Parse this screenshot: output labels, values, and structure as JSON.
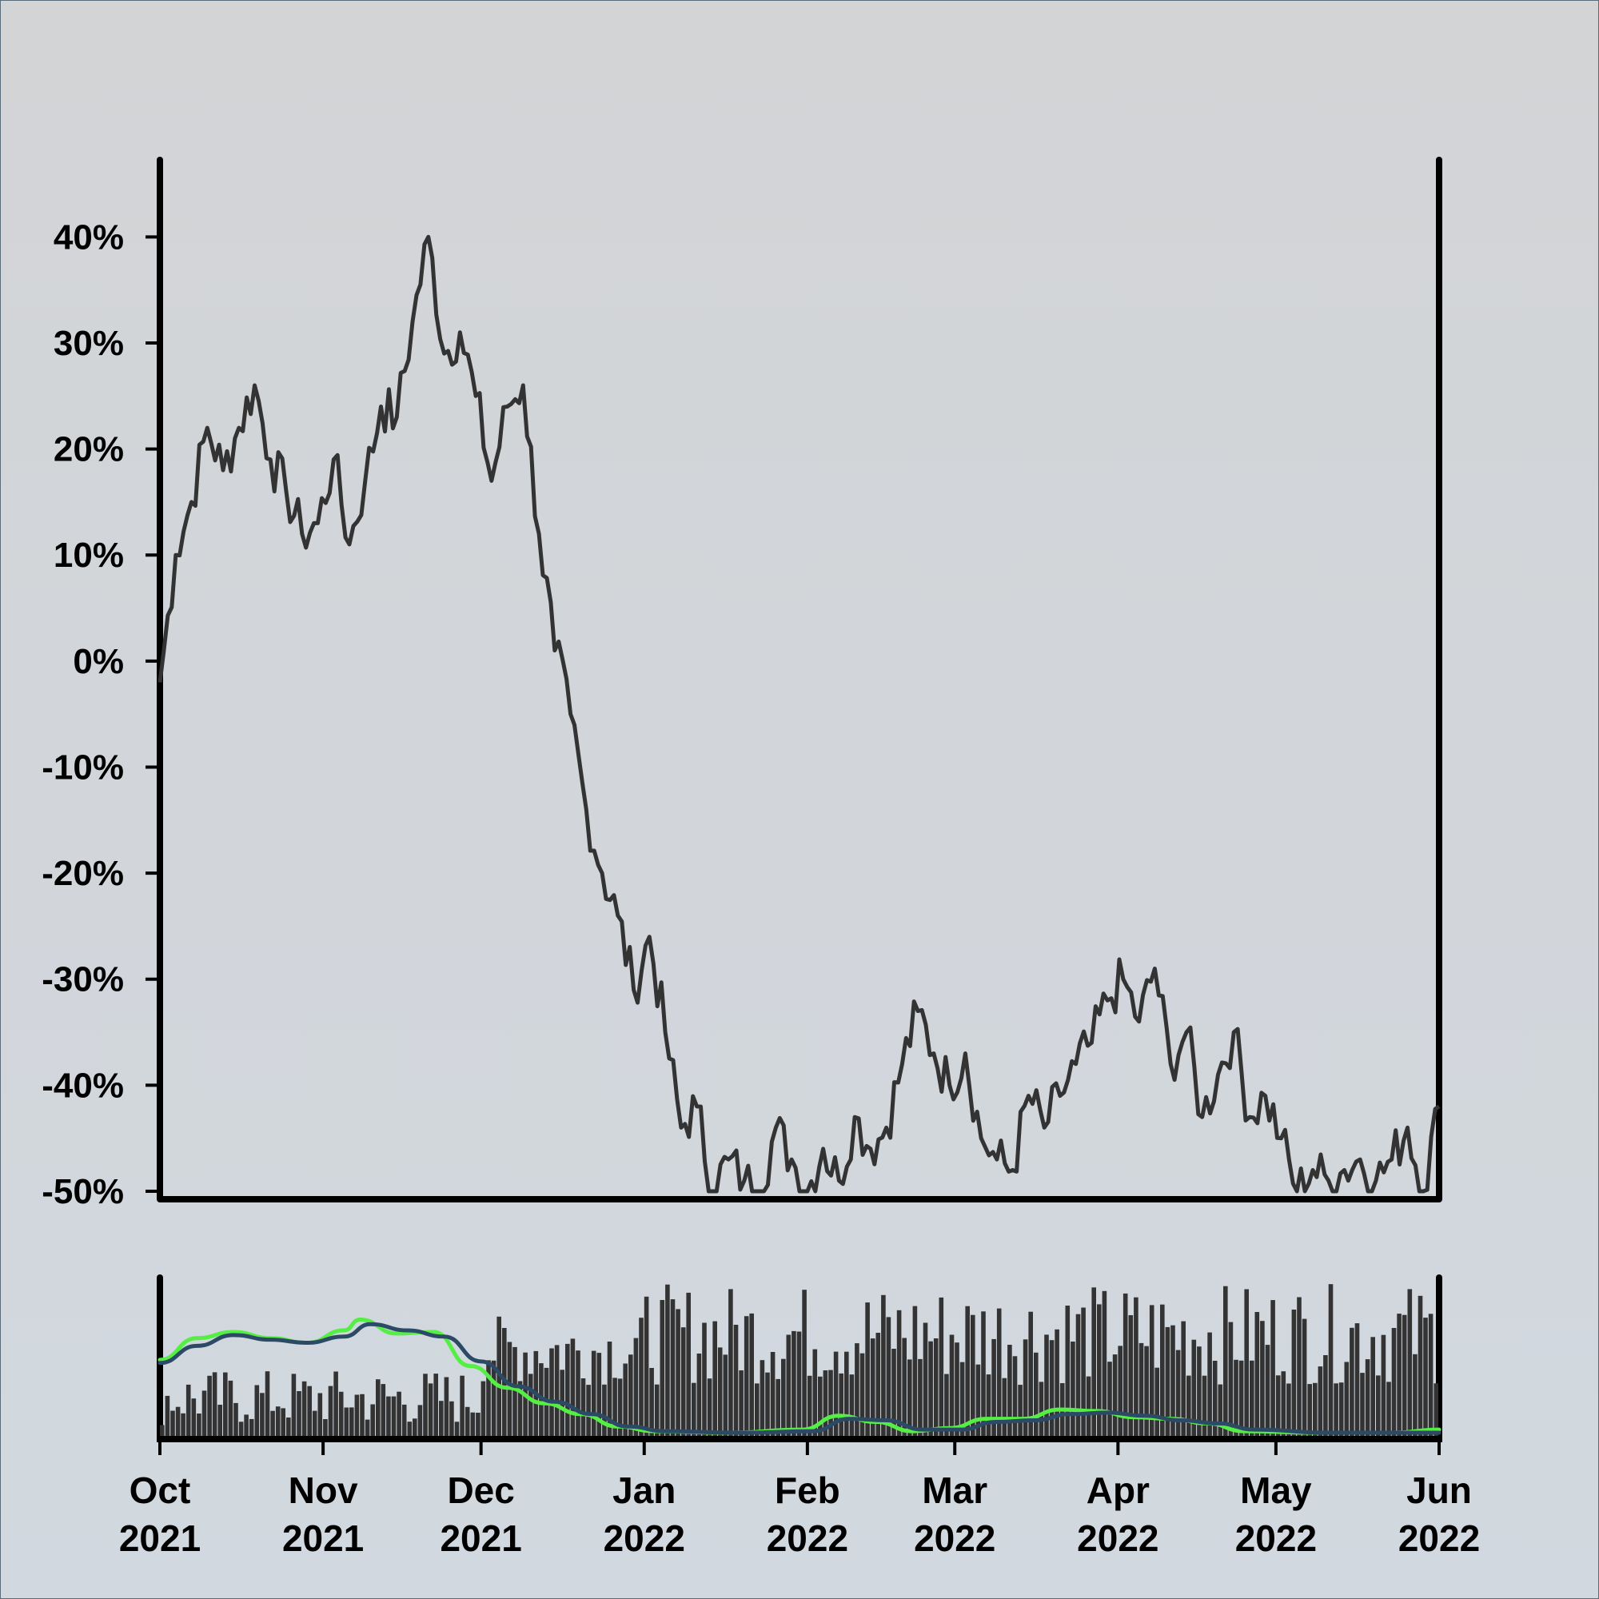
{
  "chart_data": [
    {
      "type": "line",
      "ylim": [
        -50,
        45
      ],
      "xlim": [
        "2021-10-01",
        "2022-06-01"
      ],
      "grid": false,
      "yticks": [
        "40%",
        "30%",
        "20%",
        "10%",
        "0%",
        "-10%",
        "-20%",
        "-30%",
        "-40%",
        "-50%"
      ],
      "ytick_values": [
        40,
        30,
        20,
        10,
        0,
        -10,
        -20,
        -30,
        -40,
        -50
      ],
      "line_color": "#333333",
      "series": [
        {
          "x": [
            "2021-10-01",
            "2021-10-04",
            "2021-10-07",
            "2021-10-10",
            "2021-10-13",
            "2021-10-16",
            "2021-10-19",
            "2021-10-22",
            "2021-10-25",
            "2021-10-28",
            "2021-10-31",
            "2021-11-03",
            "2021-11-06",
            "2021-11-09",
            "2021-11-12",
            "2021-11-15",
            "2021-11-18",
            "2021-11-21",
            "2021-11-24",
            "2021-11-27",
            "2021-11-30",
            "2021-12-03",
            "2021-12-06",
            "2021-12-09",
            "2021-12-12",
            "2021-12-15",
            "2021-12-18",
            "2021-12-21",
            "2021-12-24",
            "2021-12-27",
            "2021-12-30",
            "2022-01-02",
            "2022-01-05",
            "2022-01-08",
            "2022-01-11",
            "2022-01-14",
            "2022-01-17",
            "2022-01-20",
            "2022-01-23",
            "2022-01-26",
            "2022-01-29",
            "2022-02-01",
            "2022-02-04",
            "2022-02-07",
            "2022-02-10",
            "2022-02-13",
            "2022-02-16",
            "2022-02-19",
            "2022-02-22",
            "2022-02-25",
            "2022-02-28",
            "2022-03-03",
            "2022-03-06",
            "2022-03-09",
            "2022-03-12",
            "2022-03-15",
            "2022-03-18",
            "2022-03-21",
            "2022-03-24",
            "2022-03-27",
            "2022-03-30",
            "2022-04-02",
            "2022-04-05",
            "2022-04-08",
            "2022-04-11",
            "2022-04-14",
            "2022-04-17",
            "2022-04-20",
            "2022-04-23",
            "2022-04-26",
            "2022-04-29",
            "2022-05-02",
            "2022-05-05",
            "2022-05-08",
            "2022-05-11",
            "2022-05-14",
            "2022-05-17",
            "2022-05-20",
            "2022-05-23",
            "2022-05-26",
            "2022-05-29",
            "2022-06-01"
          ],
          "y": [
            -2,
            10,
            15,
            22,
            18,
            22,
            26,
            19,
            16,
            12,
            13,
            19,
            11,
            17,
            24,
            23,
            32,
            40,
            29,
            31,
            25,
            17,
            24,
            26,
            12,
            1,
            -5,
            -14,
            -20,
            -24,
            -31,
            -26,
            -35,
            -44,
            -42,
            -50,
            -47,
            -49,
            -50,
            -44,
            -47,
            -50,
            -46,
            -49,
            -43,
            -46,
            -44,
            -38,
            -33,
            -37,
            -40,
            -37,
            -45,
            -47,
            -48,
            -41,
            -44,
            -41,
            -38,
            -36,
            -32,
            -30,
            -34,
            -29,
            -38,
            -35,
            -43,
            -39,
            -35,
            -43,
            -41,
            -45,
            -50,
            -48,
            -49,
            -48,
            -47,
            -49,
            -47,
            -44,
            -50,
            -42
          ]
        }
      ]
    },
    {
      "type": "bar",
      "xlim": [
        "2021-10-01",
        "2022-06-01"
      ],
      "xticks": [
        {
          "month": "Oct",
          "year": "2021"
        },
        {
          "month": "Nov",
          "year": "2021"
        },
        {
          "month": "Dec",
          "year": "2021"
        },
        {
          "month": "Jan",
          "year": "2022"
        },
        {
          "month": "Feb",
          "year": "2022"
        },
        {
          "month": "Mar",
          "year": "2022"
        },
        {
          "month": "Apr",
          "year": "2022"
        },
        {
          "month": "May",
          "year": "2022"
        },
        {
          "month": "Jun",
          "year": "2022"
        }
      ],
      "xtick_dates": [
        "2021-10-01",
        "2021-11-01",
        "2021-12-01",
        "2022-01-01",
        "2022-02-01",
        "2022-03-01",
        "2022-04-01",
        "2022-05-01",
        "2022-06-01"
      ],
      "bar_color": "#333333",
      "volume_levels": [
        {
          "from": "2021-10-01",
          "to": "2021-11-30",
          "low": 0.08,
          "high": 0.45
        },
        {
          "from": "2021-12-01",
          "to": "2021-12-31",
          "low": 0.35,
          "high": 0.8
        },
        {
          "from": "2022-01-01",
          "to": "2022-06-01",
          "low": 0.35,
          "high": 1.0
        }
      ],
      "moving_averages": [
        {
          "color": "#55ee44",
          "x": [
            "2021-10-01",
            "2021-10-08",
            "2021-10-15",
            "2021-10-22",
            "2021-10-29",
            "2021-11-05",
            "2021-11-08",
            "2021-11-15",
            "2021-11-22",
            "2021-11-29",
            "2021-12-06",
            "2021-12-13",
            "2021-12-20",
            "2021-12-27",
            "2022-01-03",
            "2022-01-17",
            "2022-01-31",
            "2022-02-07",
            "2022-02-14",
            "2022-02-21",
            "2022-02-28",
            "2022-03-07",
            "2022-03-14",
            "2022-03-21",
            "2022-03-28",
            "2022-04-04",
            "2022-04-11",
            "2022-04-18",
            "2022-04-25",
            "2022-05-09",
            "2022-05-23",
            "2022-06-01"
          ],
          "y": [
            0.48,
            0.62,
            0.66,
            0.62,
            0.59,
            0.67,
            0.74,
            0.65,
            0.66,
            0.44,
            0.3,
            0.2,
            0.13,
            0.05,
            0.02,
            0.01,
            0.03,
            0.12,
            0.08,
            0.02,
            0.04,
            0.1,
            0.1,
            0.16,
            0.15,
            0.11,
            0.1,
            0.07,
            0.02,
            0.01,
            0.01,
            0.03
          ]
        },
        {
          "color": "#2c4a66",
          "x": [
            "2021-10-01",
            "2021-10-08",
            "2021-10-15",
            "2021-10-22",
            "2021-10-29",
            "2021-11-05",
            "2021-11-10",
            "2021-11-17",
            "2021-11-24",
            "2021-12-01",
            "2021-12-08",
            "2021-12-15",
            "2021-12-22",
            "2021-12-29",
            "2022-01-05",
            "2022-01-19",
            "2022-02-02",
            "2022-02-09",
            "2022-02-16",
            "2022-02-23",
            "2022-03-02",
            "2022-03-09",
            "2022-03-16",
            "2022-03-23",
            "2022-03-30",
            "2022-04-06",
            "2022-04-13",
            "2022-04-20",
            "2022-04-27",
            "2022-05-11",
            "2022-05-25",
            "2022-06-01"
          ],
          "y": [
            0.46,
            0.57,
            0.64,
            0.61,
            0.59,
            0.63,
            0.71,
            0.67,
            0.63,
            0.47,
            0.31,
            0.21,
            0.13,
            0.05,
            0.02,
            0.01,
            0.02,
            0.1,
            0.09,
            0.03,
            0.03,
            0.08,
            0.09,
            0.13,
            0.14,
            0.12,
            0.09,
            0.07,
            0.03,
            0.01,
            0.01,
            0.01
          ]
        }
      ]
    }
  ]
}
